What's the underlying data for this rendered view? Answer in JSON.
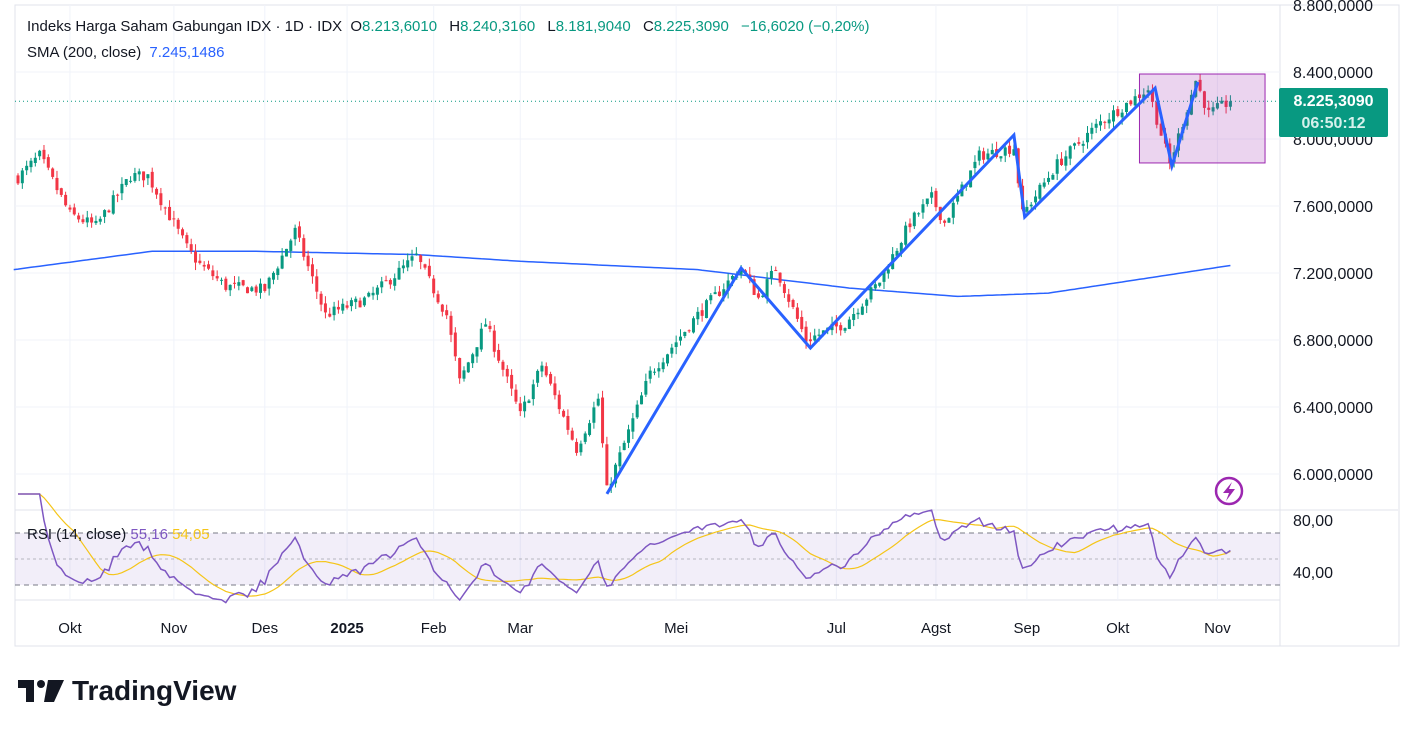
{
  "header": {
    "symbol": "Indeks Harga Saham Gabungan IDX · 1D · IDX",
    "open_label": "O",
    "open": "8.213,6010",
    "high_label": "H",
    "high": "8.240,3160",
    "low_label": "L",
    "low": "8.181,9040",
    "close_label": "C",
    "close": "8.225,3090",
    "change": "−16,6020 (−0,20%)",
    "sma_label": "SMA (200, close)",
    "sma_value": "7.245,1486"
  },
  "rsi_legend": {
    "label": "RSI (14, close)",
    "rsi": "55,16",
    "rsi_ma": "54,05"
  },
  "price_tag": {
    "price": "8.225,3090",
    "countdown": "06:50:12"
  },
  "logo": {
    "text": "TradingView"
  },
  "colors": {
    "up": "#089981",
    "down": "#f23645",
    "sma": "#2962ff",
    "zigzag": "#2962ff",
    "rsi": "#7e57c2",
    "rsi_ma": "#f5c518",
    "rect": "#9c27b0"
  },
  "chart_data": {
    "type": "candlestick",
    "title": "Indeks Harga Saham Gabungan IDX · 1D · IDX",
    "ylim": [
      5900,
      8800
    ],
    "y_ticks": [
      "8.800,0000",
      "8.400,0000",
      "8.000,0000",
      "7.600,0000",
      "7.200,0000",
      "6.800,0000",
      "6.400,0000",
      "6.000,0000"
    ],
    "y_tick_values": [
      8800,
      8400,
      8000,
      7600,
      7200,
      6800,
      6400,
      6000
    ],
    "x_ticks": [
      {
        "label": "Okt",
        "day": 12
      },
      {
        "label": "Nov",
        "day": 36
      },
      {
        "label": "Des",
        "day": 57
      },
      {
        "label": "2025",
        "day": 76
      },
      {
        "label": "Feb",
        "day": 96
      },
      {
        "label": "Mar",
        "day": 116
      },
      {
        "label": "Mei",
        "day": 152
      },
      {
        "label": "Jul",
        "day": 189
      },
      {
        "label": "Agst",
        "day": 212
      },
      {
        "label": "Sep",
        "day": 233
      },
      {
        "label": "Okt",
        "day": 254
      },
      {
        "label": "Nov",
        "day": 277
      }
    ],
    "num_days": 281,
    "close_path": [
      [
        0,
        7770
      ],
      [
        5,
        7900
      ],
      [
        12,
        7550
      ],
      [
        18,
        7480
      ],
      [
        26,
        7780
      ],
      [
        30,
        7780
      ],
      [
        39,
        7350
      ],
      [
        42,
        7250
      ],
      [
        48,
        7120
      ],
      [
        57,
        7100
      ],
      [
        64,
        7450
      ],
      [
        71,
        6950
      ],
      [
        81,
        7050
      ],
      [
        92,
        7300
      ],
      [
        99,
        6950
      ],
      [
        102,
        6550
      ],
      [
        108,
        6900
      ],
      [
        116,
        6350
      ],
      [
        121,
        6650
      ],
      [
        129,
        6150
      ],
      [
        134,
        6450
      ],
      [
        136,
        5900
      ],
      [
        146,
        6600
      ],
      [
        157,
        6950
      ],
      [
        167,
        7230
      ],
      [
        171,
        7050
      ],
      [
        175,
        7230
      ],
      [
        182,
        6800
      ],
      [
        191,
        6900
      ],
      [
        199,
        7150
      ],
      [
        206,
        7500
      ],
      [
        211,
        7650
      ],
      [
        214,
        7500
      ],
      [
        222,
        7900
      ],
      [
        230,
        7950
      ],
      [
        232,
        7550
      ],
      [
        240,
        7850
      ],
      [
        250,
        8100
      ],
      [
        261,
        8300
      ],
      [
        266,
        7850
      ],
      [
        272,
        8350
      ],
      [
        275,
        8150
      ],
      [
        280,
        8225
      ]
    ],
    "sma200": [
      [
        -1,
        7220
      ],
      [
        31,
        7330
      ],
      [
        54,
        7330
      ],
      [
        92,
        7310
      ],
      [
        116,
        7270
      ],
      [
        157,
        7220
      ],
      [
        192,
        7110
      ],
      [
        217,
        7060
      ],
      [
        238,
        7080
      ],
      [
        261,
        7170
      ],
      [
        280,
        7245
      ]
    ],
    "zigzag": [
      [
        136,
        5881
      ],
      [
        167,
        7230
      ],
      [
        183,
        6752
      ],
      [
        230,
        8024
      ],
      [
        232.5,
        7534
      ],
      [
        262.6,
        8304
      ],
      [
        266.5,
        7839
      ],
      [
        272.5,
        8340
      ]
    ],
    "rectangle": {
      "day_from": 259,
      "day_to": 288,
      "price_top": 8388,
      "price_bottom": 7857
    },
    "last_price": 8225.309,
    "rsi": {
      "ylim": [
        20,
        90
      ],
      "ticks": [
        "80,00",
        "40,00"
      ],
      "tick_values": [
        80,
        40
      ],
      "bands": [
        70,
        50,
        30
      ],
      "period": 14,
      "ma_period": 14
    }
  }
}
